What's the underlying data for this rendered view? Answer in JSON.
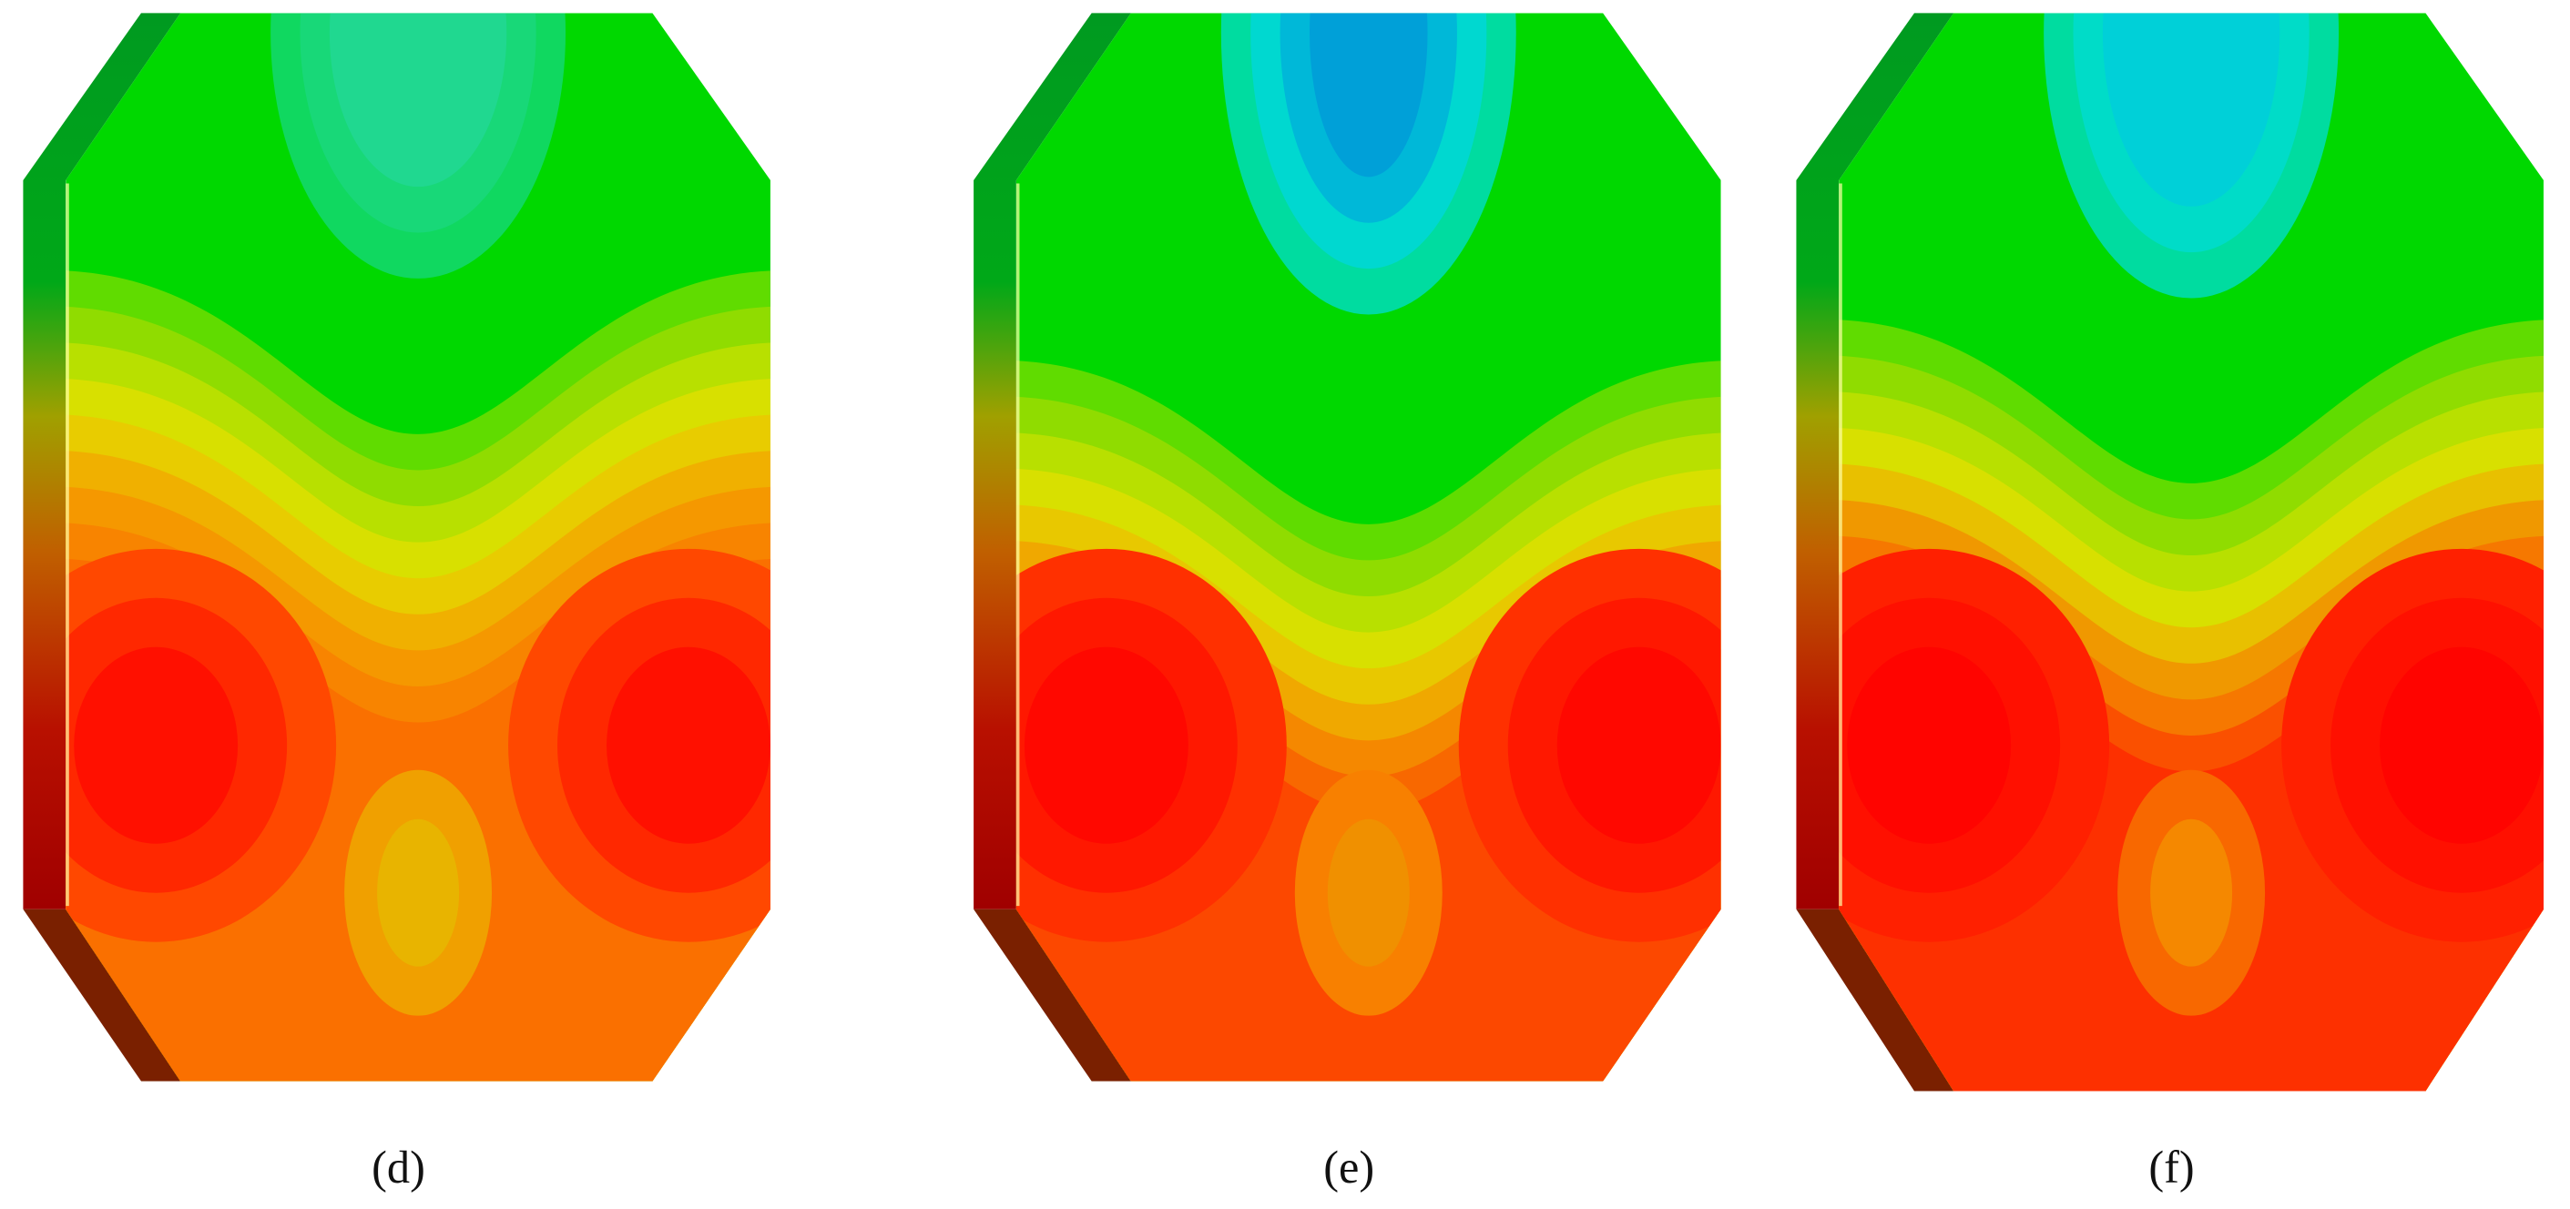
{
  "panels": [
    {
      "label": "(d)"
    },
    {
      "label": "(e)"
    },
    {
      "label": "(f)"
    }
  ]
}
